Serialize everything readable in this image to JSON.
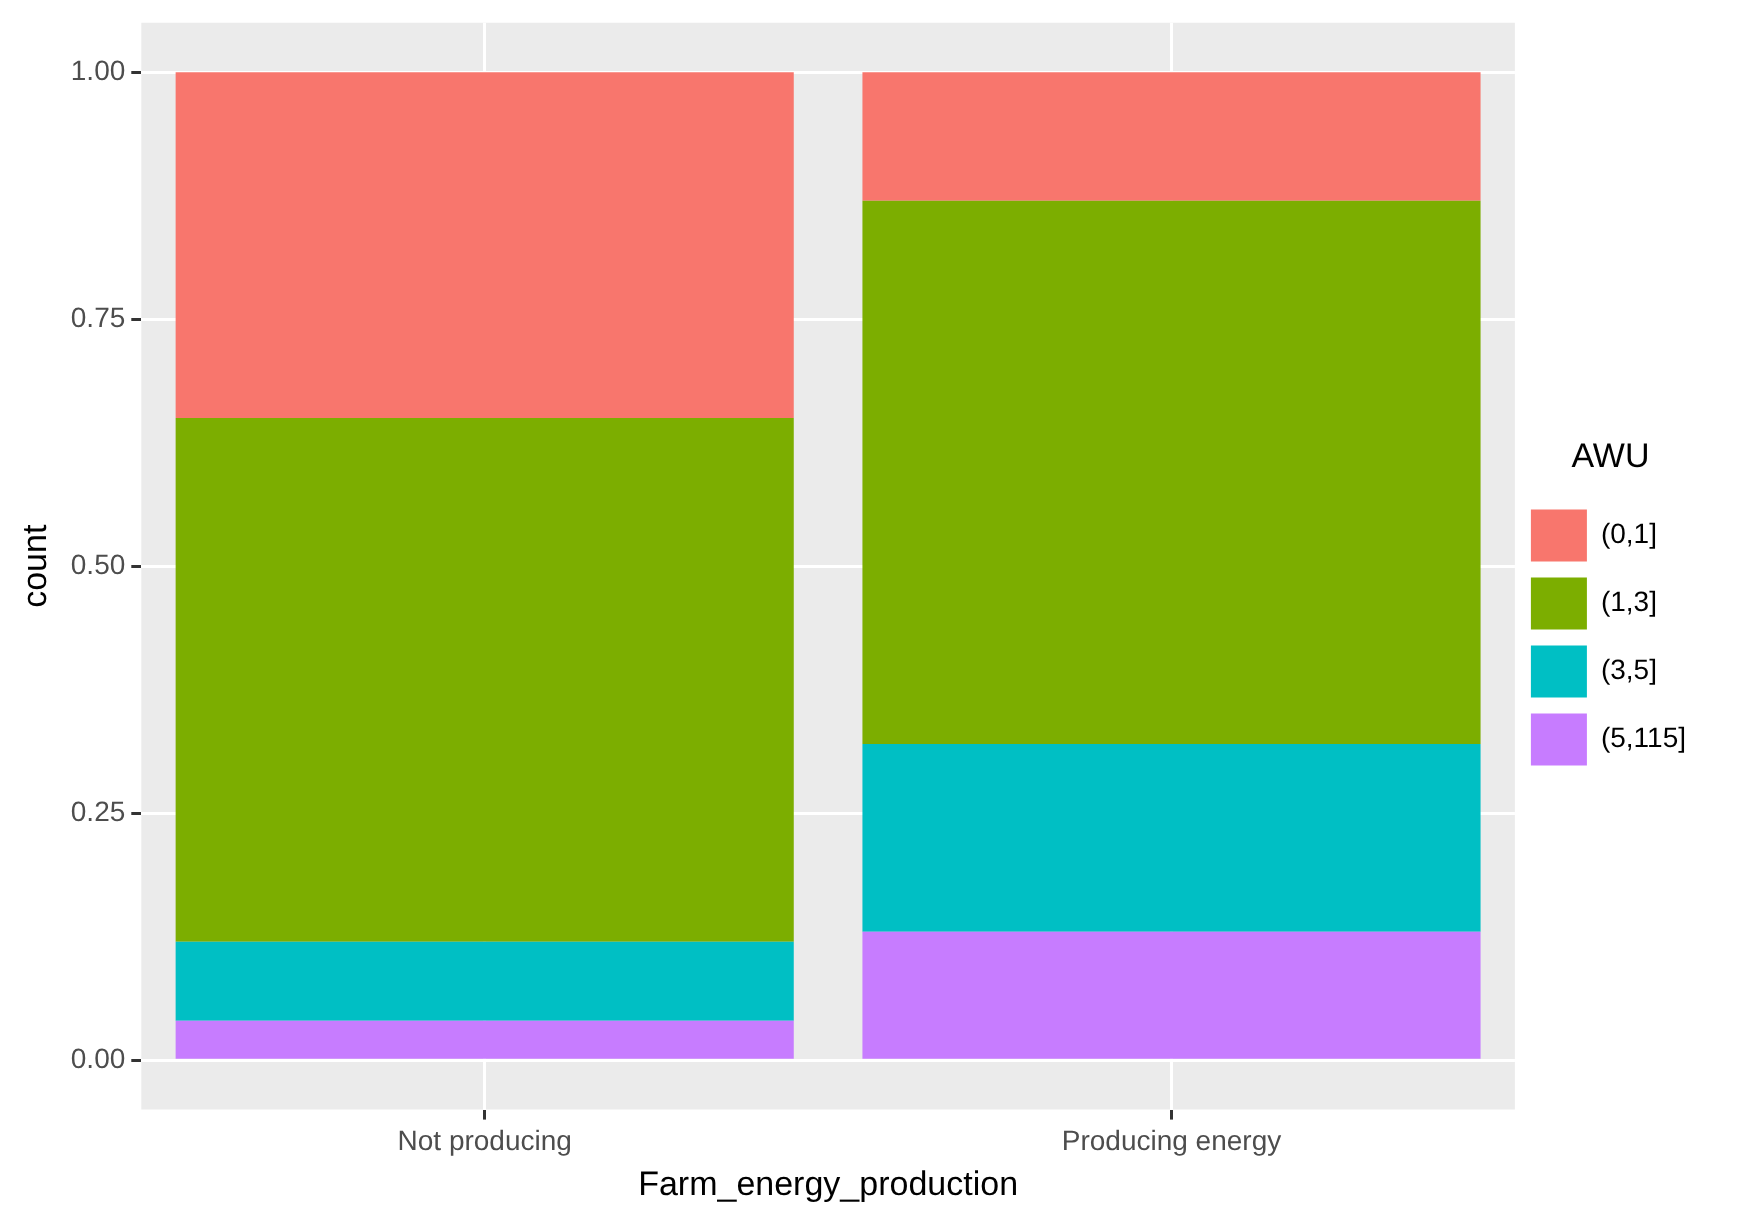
{
  "chart_data": {
    "type": "bar",
    "stacked": true,
    "xlabel": "Farm_energy_production",
    "ylabel": "count",
    "legend_title": "AWU",
    "legend": "right",
    "grid": true,
    "categories": [
      "Not producing",
      "Producing energy"
    ],
    "series": [
      {
        "name": "(5,115]",
        "color": "#c77cff",
        "values": [
          0.04,
          0.13
        ]
      },
      {
        "name": "(3,5]",
        "color": "#00bfc4",
        "values": [
          0.08,
          0.19
        ]
      },
      {
        "name": "(1,3]",
        "color": "#7cae00",
        "values": [
          0.53,
          0.55
        ]
      },
      {
        "name": "(0,1]",
        "color": "#f8766d",
        "values": [
          0.35,
          0.13
        ]
      }
    ],
    "ylim": [
      -0.05,
      1.05
    ],
    "yticks": [
      {
        "value": 0,
        "label": "0.00"
      },
      {
        "value": 0.25,
        "label": "0.25"
      },
      {
        "value": 0.5,
        "label": "0.50"
      },
      {
        "value": 0.75,
        "label": "0.75"
      },
      {
        "value": 1,
        "label": "1.00"
      }
    ]
  }
}
